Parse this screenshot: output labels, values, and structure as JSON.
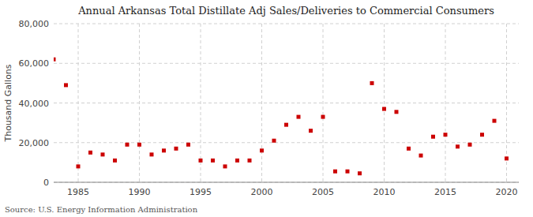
{
  "chart_data": {
    "type": "scatter",
    "title": "Annual Arkansas Total Distillate Adj Sales/Deliveries to Commercial Consumers",
    "ylabel": "Thousand Gallons",
    "source": "Source: U.S. Energy Information Administration",
    "x": [
      1983,
      1984,
      1985,
      1986,
      1987,
      1988,
      1989,
      1990,
      1991,
      1992,
      1993,
      1994,
      1995,
      1996,
      1997,
      1998,
      1999,
      2000,
      2001,
      2002,
      2003,
      2004,
      2005,
      2006,
      2007,
      2008,
      2009,
      2010,
      2011,
      2012,
      2013,
      2014,
      2015,
      2016,
      2017,
      2018,
      2019,
      2020
    ],
    "values": [
      62000,
      49000,
      8000,
      15000,
      14000,
      11000,
      19000,
      19000,
      14000,
      16000,
      17000,
      19000,
      11000,
      11000,
      8000,
      11000,
      11000,
      16000,
      21000,
      29000,
      33000,
      26000,
      33000,
      5500,
      5500,
      4500,
      50000,
      37000,
      35500,
      17000,
      13500,
      23000,
      24000,
      18000,
      19000,
      24000,
      31000,
      12000
    ],
    "color": "#cc0000",
    "marker": "square",
    "xlim": [
      1983,
      2021
    ],
    "ylim": [
      0,
      80000
    ],
    "xticks": [
      1985,
      1990,
      1995,
      2000,
      2005,
      2010,
      2015,
      2020
    ],
    "yticks": [
      0,
      {
        "value": 20000,
        "label": "20,000"
      },
      {
        "value": 40000,
        "label": "40,000"
      },
      {
        "value": 60000,
        "label": "60,000"
      },
      {
        "value": 80000,
        "label": "80,000"
      }
    ],
    "grid": true
  }
}
